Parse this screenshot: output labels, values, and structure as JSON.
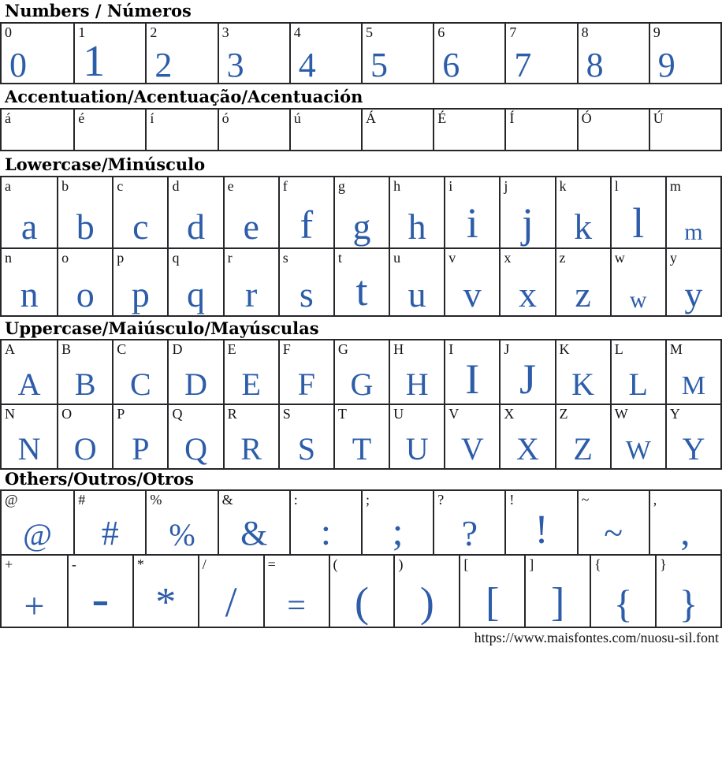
{
  "page": {
    "url_caption": "https://www.maisfontes.com/nuosu-sil.font"
  },
  "colors": {
    "accent": "#2d5da9",
    "border": "#26262b",
    "label_ink": "#121212"
  },
  "sections": [
    {
      "id": "numbers",
      "title": "Numbers / Números",
      "show_glyphs": true,
      "rows": [
        [
          "0",
          "1",
          "2",
          "3",
          "4",
          "5",
          "6",
          "7",
          "8",
          "9"
        ]
      ]
    },
    {
      "id": "accents",
      "title": "Accentuation/Acentuação/Acentuación",
      "show_glyphs": false,
      "rows": [
        [
          "á",
          "é",
          "í",
          "ó",
          "ú",
          "Á",
          "É",
          "Í",
          "Ó",
          "Ú"
        ]
      ]
    },
    {
      "id": "lowercase",
      "title": "Lowercase/Minúsculo",
      "show_glyphs": true,
      "rows": [
        [
          "a",
          "b",
          "c",
          "d",
          "e",
          "f",
          "g",
          "h",
          "i",
          "j",
          "k",
          "l",
          "m"
        ],
        [
          "n",
          "o",
          "p",
          "q",
          "r",
          "s",
          "t",
          "u",
          "v",
          "x",
          "z",
          "w",
          "y"
        ]
      ]
    },
    {
      "id": "uppercase",
      "title": "Uppercase/Maiúsculo/Mayúsculas",
      "show_glyphs": true,
      "rows": [
        [
          "A",
          "B",
          "C",
          "D",
          "E",
          "F",
          "G",
          "H",
          "I",
          "J",
          "K",
          "L",
          "M"
        ],
        [
          "N",
          "O",
          "P",
          "Q",
          "R",
          "S",
          "T",
          "U",
          "V",
          "X",
          "Z",
          "W",
          "Y"
        ]
      ]
    },
    {
      "id": "others",
      "title": "Others/Outros/Otros",
      "show_glyphs": true,
      "rows": [
        [
          "@",
          "#",
          "%",
          "&",
          ":",
          ";",
          "?",
          "!",
          "~",
          ","
        ],
        [
          "+",
          "-",
          "*",
          "/",
          "=",
          "(",
          ")",
          "[",
          "]",
          "{",
          "}"
        ]
      ]
    }
  ]
}
